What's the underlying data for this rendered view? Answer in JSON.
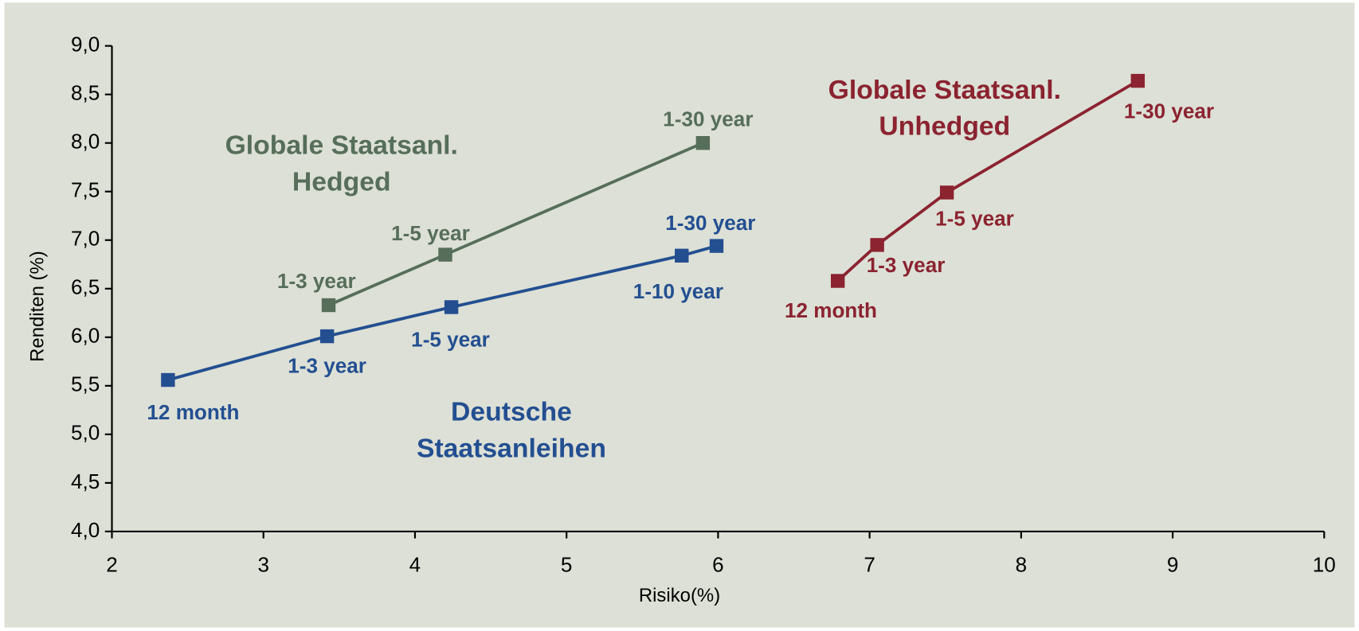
{
  "chart_data": {
    "type": "line",
    "x_label": "Risiko(%)",
    "y_label": "Renditen (%)",
    "xlim": [
      2,
      10
    ],
    "xticks": [
      2,
      3,
      4,
      5,
      6,
      7,
      8,
      9,
      10
    ],
    "ylim": [
      4,
      9
    ],
    "yticks": [
      {
        "value": 4,
        "label": "4,0"
      },
      {
        "value": 4.5,
        "label": "4,5"
      },
      {
        "value": 5,
        "label": "5,0"
      },
      {
        "value": 5.5,
        "label": "5,5"
      },
      {
        "value": 6,
        "label": "6,0"
      },
      {
        "value": 6.5,
        "label": "6,5"
      },
      {
        "value": 7,
        "label": "7,0"
      },
      {
        "value": 7.5,
        "label": "7,5"
      },
      {
        "value": 8,
        "label": "8,0"
      },
      {
        "value": 8.5,
        "label": "8,5"
      },
      {
        "value": 9,
        "label": "9,0"
      }
    ],
    "grid": false,
    "series": [
      {
        "name": "Deutsche Staatsanleihen",
        "color": "#234f91",
        "x": [
          2.37,
          3.42,
          4.24,
          5.76,
          5.99
        ],
        "values": [
          5.56,
          6.01,
          6.31,
          6.84,
          6.94
        ],
        "point_labels": [
          "12 month",
          "1-3 year",
          "1-5 year",
          "1-10 year",
          "1-30 year"
        ]
      },
      {
        "name": "Globale Staatsanl. Hedged",
        "color": "#566e5a",
        "x": [
          3.43,
          4.2,
          5.9
        ],
        "values": [
          6.33,
          6.85,
          8.0
        ],
        "point_labels": [
          "1-3 year",
          "1-5 year",
          "1-30 year"
        ]
      },
      {
        "name": "Globale Staatsanl. Unhedged",
        "color": "#8b2330",
        "x": [
          6.79,
          7.05,
          7.51,
          8.77
        ],
        "values": [
          6.58,
          6.95,
          7.49,
          8.64
        ],
        "point_labels": [
          "12 month",
          "1-3 year",
          "1-5 year",
          "1-30 year"
        ]
      }
    ]
  }
}
